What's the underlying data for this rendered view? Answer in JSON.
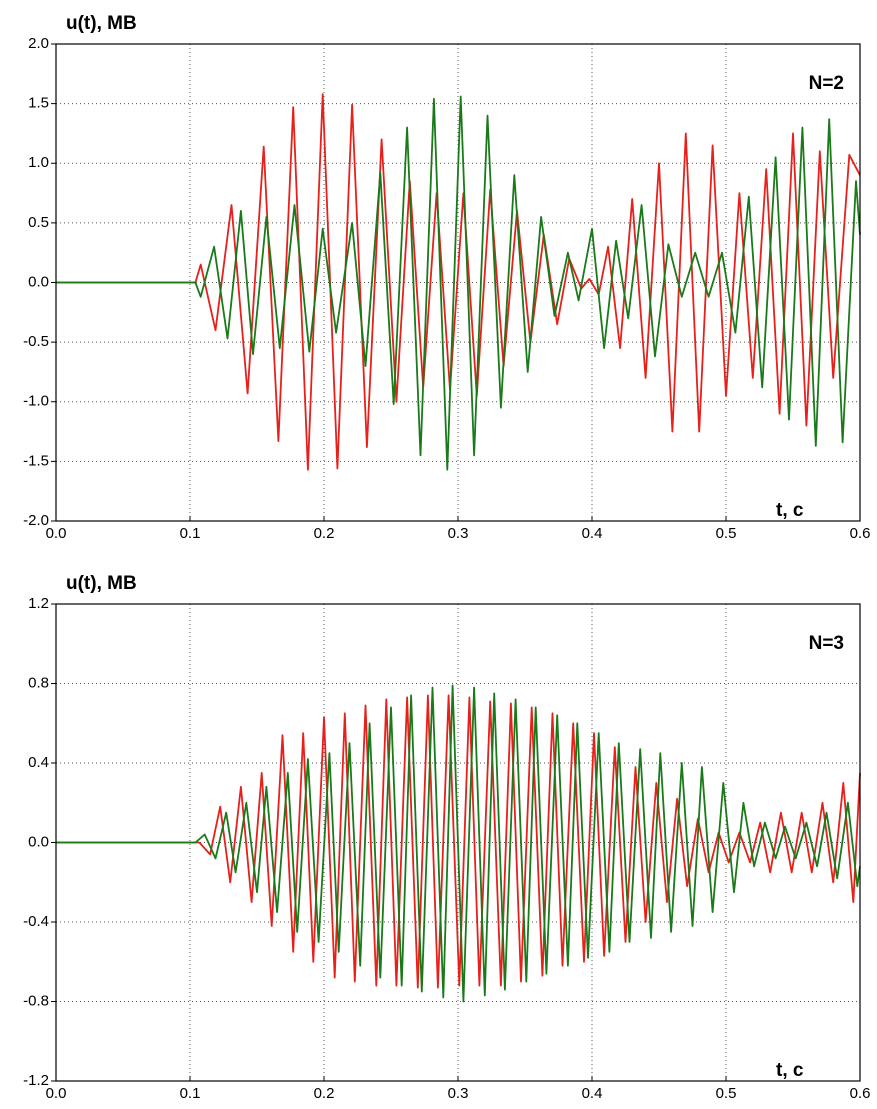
{
  "chart_data": [
    {
      "type": "line",
      "annotation": "N=2",
      "ylabel": "u(t), MB",
      "xlabel": "t, c",
      "xlim": [
        0,
        0.6
      ],
      "ylim": [
        -2,
        2
      ],
      "grid": true,
      "xticks": [
        {
          "value": 0,
          "label": "0.0"
        },
        0.1,
        0.2,
        0.3,
        0.4,
        0.5,
        0.6
      ],
      "yticks": [
        {
          "value": -2,
          "label": "-2.0"
        },
        -1.5,
        {
          "value": -1,
          "label": "-1.0"
        },
        -0.5,
        {
          "value": 0,
          "label": "0.0"
        },
        0.5,
        {
          "value": 1,
          "label": "1.0"
        },
        1.5,
        {
          "value": 2,
          "label": "2.0"
        }
      ],
      "series": [
        {
          "color": "#e8201c",
          "x": [
            0,
            0.104,
            0.108,
            0.119,
            0.131,
            0.143,
            0.155,
            0.166,
            0.177,
            0.188,
            0.199,
            0.21,
            0.221,
            0.232,
            0.243,
            0.254,
            0.264,
            0.274,
            0.284,
            0.294,
            0.304,
            0.314,
            0.324,
            0.334,
            0.344,
            0.354,
            0.364,
            0.374,
            0.383,
            0.392,
            0.398,
            0.405,
            0.412,
            0.421,
            0.43,
            0.44,
            0.45,
            0.46,
            0.47,
            0.48,
            0.49,
            0.5,
            0.51,
            0.52,
            0.53,
            0.54,
            0.55,
            0.56,
            0.57,
            0.58,
            0.592,
            0.6
          ],
          "values": [
            0,
            0,
            0.15,
            -0.4,
            0.65,
            -0.93,
            1.14,
            -1.33,
            1.47,
            -1.57,
            1.58,
            -1.56,
            1.49,
            -1.38,
            1.2,
            -1.0,
            0.85,
            -0.88,
            0.75,
            -0.9,
            0.75,
            -0.95,
            0.78,
            -0.7,
            0.6,
            -0.5,
            0.4,
            -0.35,
            0.2,
            -0.05,
            0.03,
            -0.1,
            0.3,
            -0.55,
            0.7,
            -0.8,
            1.0,
            -1.25,
            1.25,
            -1.25,
            1.15,
            -0.95,
            0.75,
            -0.8,
            0.95,
            -1.1,
            1.25,
            -1.2,
            1.1,
            -0.8,
            1.07,
            0.9
          ]
        },
        {
          "color": "#1a7a1a",
          "x": [
            0,
            0.104,
            0.108,
            0.118,
            0.128,
            0.138,
            0.147,
            0.157,
            0.167,
            0.178,
            0.189,
            0.199,
            0.209,
            0.221,
            0.231,
            0.242,
            0.252,
            0.262,
            0.272,
            0.282,
            0.292,
            0.302,
            0.312,
            0.322,
            0.332,
            0.342,
            0.352,
            0.362,
            0.372,
            0.382,
            0.39,
            0.4,
            0.409,
            0.418,
            0.427,
            0.437,
            0.447,
            0.457,
            0.467,
            0.477,
            0.487,
            0.497,
            0.507,
            0.517,
            0.527,
            0.537,
            0.547,
            0.557,
            0.567,
            0.577,
            0.587,
            0.597,
            0.6
          ],
          "values": [
            0,
            0,
            -0.12,
            0.3,
            -0.47,
            0.6,
            -0.6,
            0.55,
            -0.55,
            0.65,
            -0.58,
            0.45,
            -0.42,
            0.5,
            -0.7,
            0.92,
            -1.02,
            1.3,
            -1.45,
            1.54,
            -1.57,
            1.56,
            -1.45,
            1.4,
            -1.05,
            0.9,
            -0.75,
            0.55,
            -0.28,
            0.25,
            -0.15,
            0.45,
            -0.55,
            0.35,
            -0.3,
            0.65,
            -0.62,
            0.32,
            -0.12,
            0.25,
            -0.12,
            0.25,
            -0.42,
            0.72,
            -0.88,
            1.05,
            -1.15,
            1.3,
            -1.37,
            1.37,
            -1.34,
            0.85,
            0.4
          ]
        }
      ]
    },
    {
      "type": "line",
      "annotation": "N=3",
      "ylabel": "u(t), MB",
      "xlabel": "t, c",
      "xlim": [
        0,
        0.6
      ],
      "ylim": [
        -1.2,
        1.2
      ],
      "grid": true,
      "xticks": [
        {
          "value": 0,
          "label": "0.0"
        },
        0.1,
        0.2,
        0.3,
        0.4,
        0.5,
        0.6
      ],
      "yticks": [
        -1.2,
        -0.8,
        -0.4,
        {
          "value": 0,
          "label": "0.0"
        },
        0.4,
        0.8,
        1.2
      ],
      "series": [
        {
          "color": "#e8201c",
          "x": [
            0,
            0.104,
            0.107,
            0.115,
            0.1225,
            0.13,
            0.138,
            0.146,
            0.1535,
            0.161,
            0.169,
            0.177,
            0.1845,
            0.192,
            0.2,
            0.208,
            0.2155,
            0.223,
            0.231,
            0.239,
            0.2465,
            0.254,
            0.262,
            0.27,
            0.2775,
            0.285,
            0.293,
            0.301,
            0.3085,
            0.316,
            0.324,
            0.332,
            0.3395,
            0.347,
            0.355,
            0.363,
            0.3705,
            0.378,
            0.386,
            0.394,
            0.4015,
            0.409,
            0.417,
            0.425,
            0.4325,
            0.44,
            0.448,
            0.456,
            0.4635,
            0.471,
            0.479,
            0.487,
            0.4945,
            0.502,
            0.51,
            0.518,
            0.5255,
            0.533,
            0.541,
            0.549,
            0.5565,
            0.564,
            0.572,
            0.58,
            0.5875,
            0.595,
            0.6
          ],
          "values": [
            0,
            0,
            0,
            -0.06,
            0.18,
            -0.2,
            0.28,
            -0.3,
            0.35,
            -0.42,
            0.54,
            -0.55,
            0.55,
            -0.6,
            0.63,
            -0.68,
            0.65,
            -0.7,
            0.69,
            -0.72,
            0.72,
            -0.72,
            0.73,
            -0.73,
            0.74,
            -0.73,
            0.74,
            -0.72,
            0.73,
            -0.72,
            0.71,
            -0.72,
            0.7,
            -0.7,
            0.68,
            -0.67,
            0.65,
            -0.62,
            0.6,
            -0.6,
            0.55,
            -0.57,
            0.48,
            -0.5,
            0.38,
            -0.4,
            0.3,
            -0.3,
            0.22,
            -0.22,
            0.12,
            -0.15,
            0.05,
            -0.1,
            0.05,
            -0.1,
            0.1,
            -0.15,
            0.15,
            -0.15,
            0.15,
            -0.15,
            0.2,
            -0.2,
            0.3,
            -0.3,
            0.35
          ]
        },
        {
          "color": "#1a7a1a",
          "x": [
            0,
            0.104,
            0.111,
            0.119,
            0.127,
            0.134,
            0.142,
            0.15,
            0.157,
            0.165,
            0.173,
            0.18,
            0.188,
            0.196,
            0.204,
            0.211,
            0.219,
            0.227,
            0.234,
            0.242,
            0.25,
            0.258,
            0.265,
            0.273,
            0.281,
            0.289,
            0.296,
            0.304,
            0.312,
            0.32,
            0.327,
            0.335,
            0.343,
            0.351,
            0.358,
            0.366,
            0.374,
            0.382,
            0.389,
            0.397,
            0.405,
            0.413,
            0.42,
            0.428,
            0.436,
            0.444,
            0.451,
            0.459,
            0.467,
            0.475,
            0.482,
            0.49,
            0.498,
            0.506,
            0.513,
            0.521,
            0.529,
            0.537,
            0.544,
            0.552,
            0.56,
            0.568,
            0.575,
            0.583,
            0.591,
            0.598,
            0.6
          ],
          "values": [
            0,
            0,
            0.04,
            -0.08,
            0.15,
            -0.15,
            0.2,
            -0.25,
            0.28,
            -0.35,
            0.35,
            -0.45,
            0.42,
            -0.5,
            0.45,
            -0.55,
            0.5,
            -0.62,
            0.6,
            -0.68,
            0.68,
            -0.72,
            0.74,
            -0.75,
            0.78,
            -0.78,
            0.79,
            -0.8,
            0.78,
            -0.77,
            0.75,
            -0.74,
            0.72,
            -0.7,
            0.68,
            -0.66,
            0.64,
            -0.62,
            0.6,
            -0.58,
            0.55,
            -0.55,
            0.5,
            -0.5,
            0.47,
            -0.48,
            0.45,
            -0.45,
            0.4,
            -0.42,
            0.38,
            -0.35,
            0.3,
            -0.25,
            0.2,
            -0.12,
            0.1,
            -0.08,
            0.08,
            -0.08,
            0.1,
            -0.12,
            0.15,
            -0.18,
            0.2,
            -0.22,
            -0.12
          ]
        }
      ]
    }
  ]
}
